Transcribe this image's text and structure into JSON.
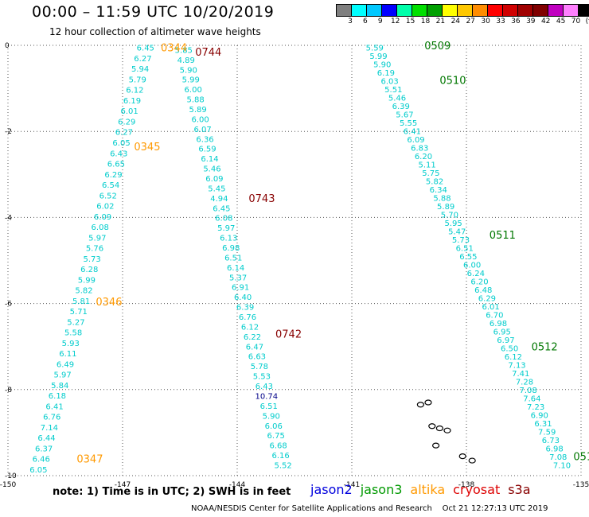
{
  "header": {
    "title": "00:00 – 11:59 UTC 10/20/2019",
    "subtitle": "12 hour collection of altimeter wave heights"
  },
  "colorbar": {
    "unit": "(ft)",
    "swatches": [
      "#7f7f7f",
      "#00ffff",
      "#00c8ff",
      "#0000ff",
      "#00ffaa",
      "#00e000",
      "#00a000",
      "#ffff00",
      "#ffc800",
      "#ff8c00",
      "#ff0000",
      "#d00000",
      "#a00000",
      "#800000",
      "#c000c0",
      "#ff80ff",
      "#000000"
    ],
    "labels": [
      "3",
      "6",
      "9",
      "12",
      "15",
      "18",
      "21",
      "24",
      "27",
      "30",
      "33",
      "36",
      "39",
      "42",
      "45",
      "70"
    ]
  },
  "axes": {
    "x_ticks": [
      "-150",
      "-147",
      "-144",
      "-141",
      "-138",
      "-135"
    ],
    "y_ticks": [
      "0",
      "-2",
      "-4",
      "-6",
      "-8",
      "-10"
    ]
  },
  "chart_data": {
    "type": "scatter",
    "xlim": [
      -150,
      -135
    ],
    "ylim": [
      -10,
      0
    ],
    "grid": true,
    "series_colors": {
      "altika": "#ff9900",
      "cryosat": "#880000",
      "jason3": "#007700",
      "wave": "#00cccc",
      "high": "#000088"
    },
    "tracks": [
      {
        "name": "altika-pass-left",
        "color_key": "wave",
        "x0": -146.4,
        "y0": -0.05,
        "x1": -149.2,
        "y1": -9.85,
        "values": [
          "6.45",
          "6.27",
          "5.94",
          "5.79",
          "6.12",
          "6.19",
          "6.01",
          "6.29",
          "6.27",
          "6.05",
          "6.43",
          "6.65",
          "6.29",
          "6.54",
          "6.52",
          "6.02",
          "6.09",
          "6.08",
          "5.97",
          "5.76",
          "5.73",
          "6.28",
          "5.99",
          "5.82",
          "5.81",
          "5.71",
          "5.27",
          "5.58",
          "5.93",
          "6.11",
          "6.49",
          "5.97",
          "5.84",
          "6.18",
          "6.41",
          "6.76",
          "7.14",
          "6.44",
          "6.37",
          "6.46",
          "6.05"
        ]
      },
      {
        "name": "cryosat-pass-left",
        "color_key": "wave",
        "x0": -145.4,
        "y0": -0.1,
        "x1": -142.8,
        "y1": -9.75,
        "values": [
          "5.85",
          "4.89",
          "5.90",
          "5.99",
          "6.00",
          "5.88",
          "5.89",
          "6.00",
          "6.07",
          "6.36",
          "6.59",
          "6.14",
          "5.46",
          "6.09",
          "5.45",
          "4.94",
          "6.45",
          "6.08",
          "5.97",
          "6.13",
          "6.98",
          "6.51",
          "6.14",
          "5.37",
          "6.91",
          "6.40",
          "6.39",
          "6.76",
          "6.12",
          "6.22",
          "6.47",
          "6.63",
          "5.78",
          "5.53",
          "6.43",
          "10.74",
          "6.51",
          "5.90",
          "6.06",
          "6.75",
          "6.68",
          "6.16",
          "5.52"
        ]
      },
      {
        "name": "jason3-pass-right",
        "color_key": "wave",
        "x0": -140.4,
        "y0": -0.05,
        "x1": -135.5,
        "y1": -9.75,
        "values": [
          "5.59",
          "5.99",
          "5.90",
          "6.19",
          "6.03",
          "5.51",
          "5.46",
          "6.39",
          "5.67",
          "5.55",
          "6.41",
          "6.09",
          "6.83",
          "6.20",
          "5.11",
          "5.75",
          "5.82",
          "6.34",
          "5.88",
          "5.89",
          "5.70",
          "5.95",
          "5.47",
          "5.73",
          "6.51",
          "6.55",
          "6.00",
          "6.24",
          "6.20",
          "6.48",
          "6.29",
          "6.01",
          "6.70",
          "6.98",
          "6.95",
          "6.97",
          "6.50",
          "6.12",
          "7.13",
          "7.41",
          "7.28",
          "7.08",
          "7.64",
          "7.23",
          "6.90",
          "6.31",
          "7.59",
          "6.73",
          "6.98",
          "7.08",
          "7.10"
        ]
      }
    ],
    "time_labels": [
      {
        "text": "0344",
        "color_key": "altika",
        "x": -146.0,
        "y": -0.05
      },
      {
        "text": "0345",
        "color_key": "altika",
        "x": -146.7,
        "y": -2.35
      },
      {
        "text": "0346",
        "color_key": "altika",
        "x": -147.7,
        "y": -5.95
      },
      {
        "text": "0347",
        "color_key": "altika",
        "x": -148.2,
        "y": -9.6
      },
      {
        "text": "0744",
        "color_key": "cryosat",
        "x": -145.1,
        "y": -0.15
      },
      {
        "text": "0743",
        "color_key": "cryosat",
        "x": -143.7,
        "y": -3.55
      },
      {
        "text": "0742",
        "color_key": "cryosat",
        "x": -143.0,
        "y": -6.7
      },
      {
        "text": "0509",
        "color_key": "jason3",
        "x": -139.1,
        "y": -0.0
      },
      {
        "text": "0510",
        "color_key": "jason3",
        "x": -138.7,
        "y": -0.8
      },
      {
        "text": "0511",
        "color_key": "jason3",
        "x": -137.4,
        "y": -4.4
      },
      {
        "text": "0512",
        "color_key": "jason3",
        "x": -136.3,
        "y": -7.0
      },
      {
        "text": "051",
        "color_key": "jason3",
        "x": -135.2,
        "y": -9.55
      }
    ],
    "islands": [
      {
        "x": -139.2,
        "y": -8.35
      },
      {
        "x": -139.0,
        "y": -8.3
      },
      {
        "x": -138.9,
        "y": -8.85
      },
      {
        "x": -138.7,
        "y": -8.9
      },
      {
        "x": -138.5,
        "y": -8.95
      },
      {
        "x": -138.8,
        "y": -9.3
      },
      {
        "x": -138.1,
        "y": -9.55
      },
      {
        "x": -137.85,
        "y": -9.65
      }
    ]
  },
  "footer": {
    "note": "note: 1) Time is in UTC; 2) SWH is in feet",
    "credit": "NOAA/NESDIS Center for Satellite Applications and Research    Oct 21 12:27:13 UTC 2019",
    "missions": [
      {
        "name": "jason2",
        "color": "#0000dd"
      },
      {
        "name": "jason3",
        "color": "#009900"
      },
      {
        "name": "altika",
        "color": "#ff9900"
      },
      {
        "name": "cryosat",
        "color": "#dd0000"
      },
      {
        "name": "s3a",
        "color": "#880000"
      }
    ]
  }
}
